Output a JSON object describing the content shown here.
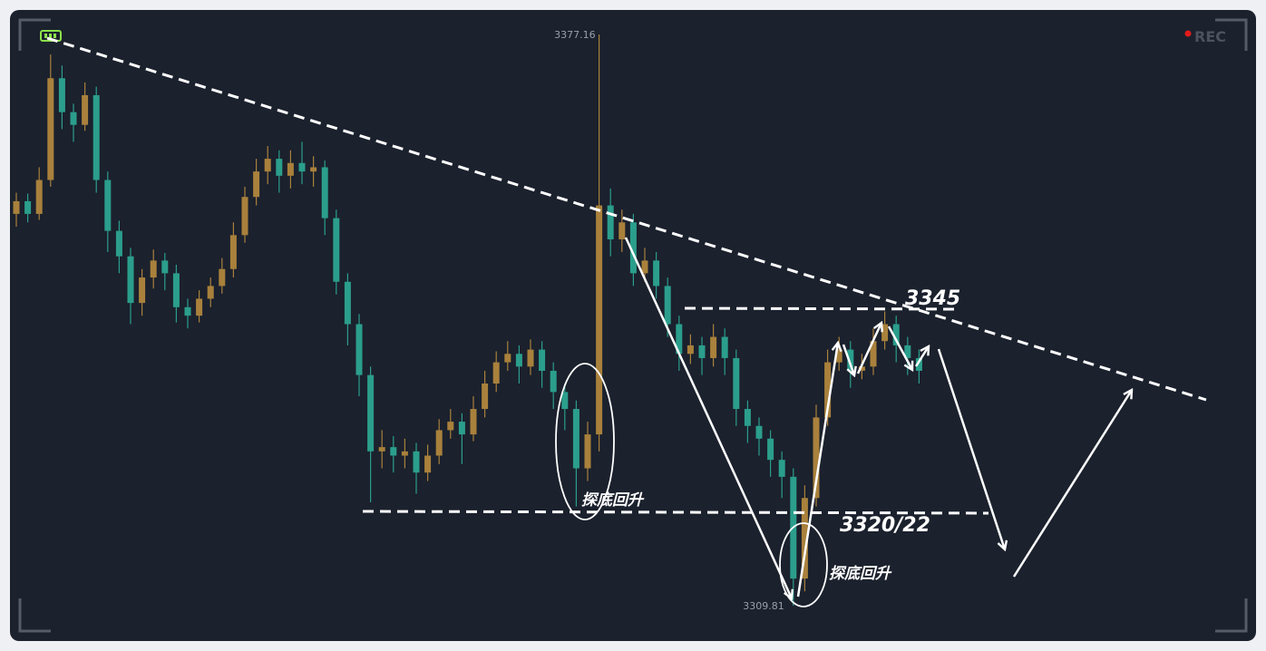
{
  "chart_data": {
    "type": "candlestick",
    "up_color": "#a9813c",
    "down_color": "#2b9e8c",
    "ylim": [
      3305.85,
      3379.94
    ],
    "open": [
      3356.0,
      3357.5,
      3356.0,
      3360.0,
      3372.0,
      3368.0,
      3366.5,
      3370.0,
      3360.0,
      3354.0,
      3351.0,
      3345.5,
      3348.5,
      3350.5,
      3349.0,
      3345.0,
      3344.0,
      3346.0,
      3347.5,
      3349.5,
      3353.5,
      3358.0,
      3361.0,
      3362.5,
      3360.5,
      3362.0,
      3361.0,
      3361.5,
      3355.5,
      3348.0,
      3343.0,
      3337.0,
      3328.0,
      3328.5,
      3327.5,
      3328.0,
      3325.5,
      3327.5,
      3330.5,
      3331.5,
      3330.0,
      3333.0,
      3336.0,
      3338.5,
      3339.5,
      3338.0,
      3340.0,
      3337.5,
      3335.0,
      3333.0,
      3326.0,
      3330.0,
      3357.0,
      3353.0,
      3355.0,
      3349.0,
      3350.5,
      3347.5,
      3343.0,
      3339.5,
      3340.5,
      3339.0,
      3341.5,
      3339.0,
      3333.0,
      3331.0,
      3329.5,
      3327.0,
      3325.0,
      3313.0,
      3322.5,
      3332.0,
      3338.5,
      3340.0,
      3337.5,
      3338.0,
      3341.0,
      3343.0,
      3340.5,
      3339.0
    ],
    "high": [
      3358.5,
      3358.4,
      3361.5,
      3374.8,
      3373.5,
      3369.0,
      3371.5,
      3371.0,
      3361.0,
      3355.2,
      3352.0,
      3349.5,
      3351.8,
      3351.4,
      3350.0,
      3346.0,
      3347.0,
      3348.5,
      3350.8,
      3355.0,
      3359.2,
      3362.5,
      3364.0,
      3363.5,
      3363.5,
      3364.5,
      3362.8,
      3362.3,
      3356.5,
      3349.0,
      3344.2,
      3338.0,
      3330.5,
      3329.8,
      3329.5,
      3329.0,
      3328.8,
      3331.8,
      3333.0,
      3332.5,
      3334.5,
      3337.5,
      3339.8,
      3341.0,
      3340.5,
      3341.2,
      3341.0,
      3338.5,
      3336.0,
      3334.0,
      3331.5,
      3377.16,
      3359.0,
      3356.5,
      3356.0,
      3352.0,
      3351.5,
      3348.5,
      3344.0,
      3341.8,
      3341.5,
      3343.0,
      3342.5,
      3340.0,
      3334.0,
      3332.0,
      3330.5,
      3328.0,
      3326.0,
      3324.0,
      3333.5,
      3340.0,
      3341.5,
      3341.0,
      3339.5,
      3342.5,
      3344.5,
      3344.0,
      3341.5,
      3340.0
    ],
    "low": [
      3354.5,
      3355.0,
      3355.3,
      3359.2,
      3366.0,
      3364.5,
      3365.8,
      3358.5,
      3351.5,
      3349.0,
      3343.0,
      3344.0,
      3347.2,
      3347.0,
      3343.2,
      3342.5,
      3343.2,
      3345.0,
      3346.6,
      3348.5,
      3352.6,
      3357.0,
      3359.5,
      3358.5,
      3359.0,
      3359.5,
      3359.2,
      3353.5,
      3346.5,
      3340.5,
      3334.5,
      3322.0,
      3326.0,
      3325.5,
      3326.0,
      3323.0,
      3324.5,
      3326.5,
      3329.5,
      3326.5,
      3329.2,
      3332.0,
      3335.0,
      3337.5,
      3336.0,
      3337.0,
      3335.5,
      3333.0,
      3330.5,
      3321.5,
      3324.5,
      3328.0,
      3351.0,
      3351.5,
      3347.5,
      3348.0,
      3346.0,
      3341.5,
      3337.5,
      3338.3,
      3337.0,
      3338.0,
      3337.0,
      3331.0,
      3329.0,
      3327.5,
      3325.0,
      3322.5,
      3309.81,
      3311.5,
      3321.5,
      3331.0,
      3337.5,
      3335.5,
      3336.5,
      3337.0,
      3340.0,
      3338.5,
      3337.0,
      3336.0
    ],
    "close": [
      3357.5,
      3356.0,
      3360.0,
      3372.0,
      3368.0,
      3366.5,
      3370.0,
      3360.0,
      3354.0,
      3351.0,
      3345.5,
      3348.5,
      3350.5,
      3349.0,
      3345.0,
      3344.0,
      3346.0,
      3347.5,
      3349.5,
      3353.5,
      3358.0,
      3361.0,
      3362.5,
      3360.5,
      3362.0,
      3361.0,
      3361.5,
      3355.5,
      3348.0,
      3343.0,
      3337.0,
      3328.0,
      3328.5,
      3327.5,
      3328.0,
      3325.5,
      3327.5,
      3330.5,
      3331.5,
      3330.0,
      3333.0,
      3336.0,
      3338.5,
      3339.5,
      3338.0,
      3340.0,
      3337.5,
      3335.0,
      3333.0,
      3326.0,
      3330.0,
      3357.0,
      3353.0,
      3355.0,
      3349.0,
      3350.5,
      3347.5,
      3343.0,
      3339.5,
      3340.5,
      3339.0,
      3341.5,
      3339.0,
      3333.0,
      3331.0,
      3329.5,
      3327.0,
      3325.0,
      3313.0,
      3322.5,
      3332.0,
      3338.5,
      3340.0,
      3337.5,
      3338.0,
      3341.0,
      3343.0,
      3340.5,
      3339.0,
      3337.5
    ],
    "annotations": {
      "level_high": "3345",
      "level_low": "3320/22",
      "rebound_1": "探底回升",
      "rebound_2": "探底回升"
    }
  },
  "overlay": {
    "rec": "REC"
  }
}
